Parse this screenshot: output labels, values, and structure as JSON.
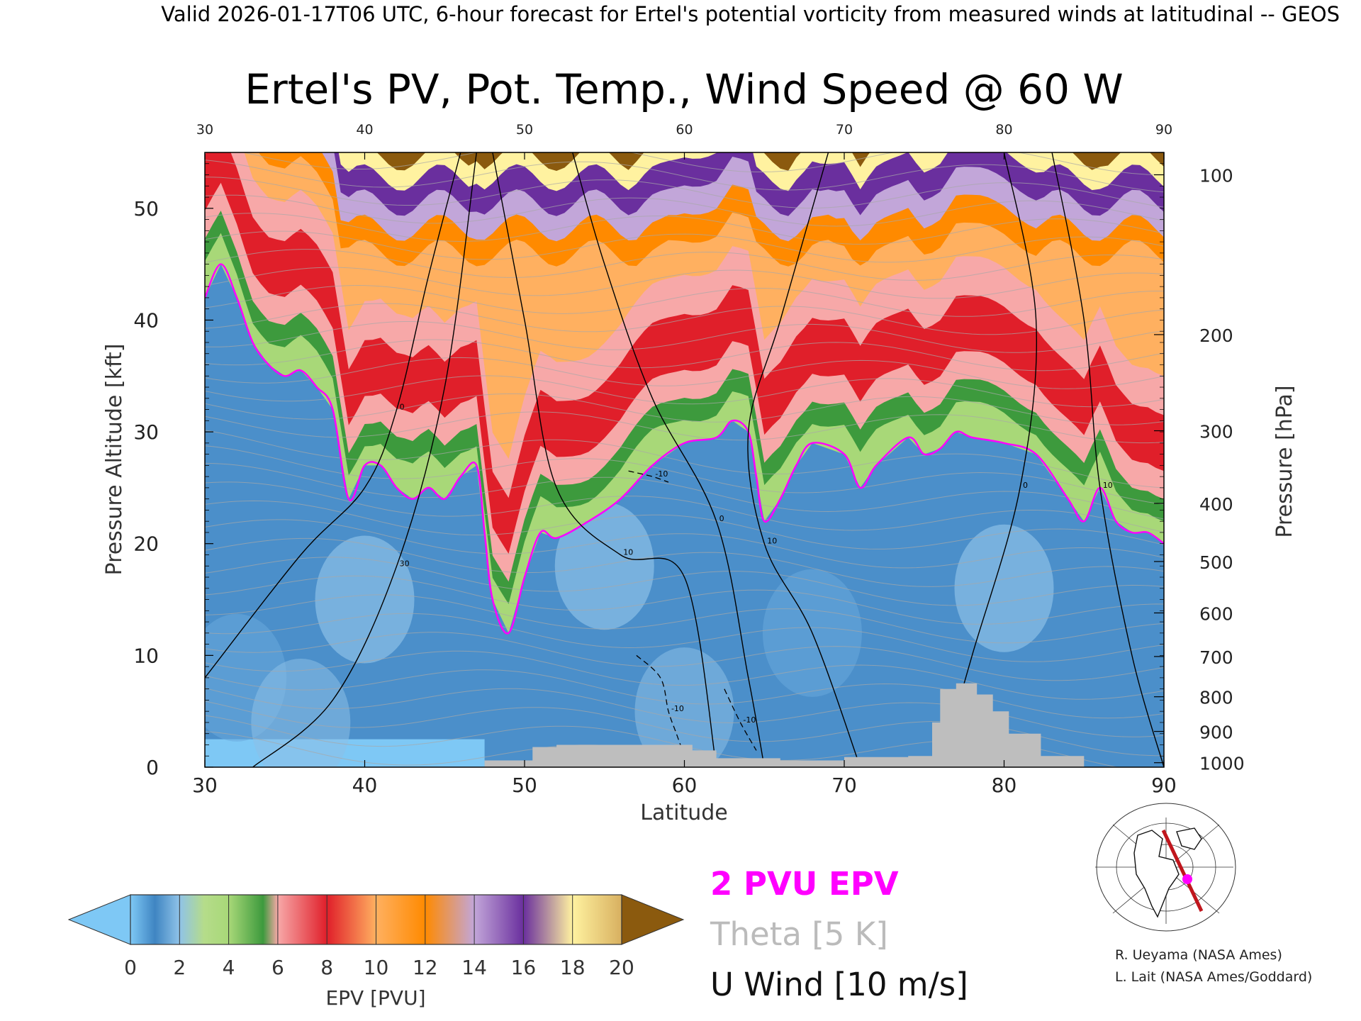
{
  "header": {
    "valid_line": "Valid 2026-01-17T06 UTC, 6-hour forecast for Ertel's potential vorticity from measured winds at latitudinal -- GEOS",
    "title": "Ertel's PV, Pot. Temp., Wind Speed @ 60 W"
  },
  "colors": {
    "pv_2pvu_contour": "#ff00ff",
    "theta_contour": "#a8a8a8",
    "u_wind_contour": "#000000",
    "terrain": "#bebebe",
    "colorbar": [
      "#7ec8f5",
      "#3f85c2",
      "#8fc3e8",
      "#a8d878",
      "#3d9a3d",
      "#f7a8a8",
      "#e01f2a",
      "#ffb060",
      "#ff8a00",
      "#c2a6d9",
      "#6a2f9e",
      "#fff2a0",
      "#8b5a0e"
    ]
  },
  "chart_data": {
    "type": "heatmap",
    "title": "Ertel's PV, Pot. Temp., Wind Speed @ 60 W",
    "xlabel": "Latitude",
    "ylabel": "Pressure Altitude [kft]",
    "y2label": "Pressure [hPa]",
    "xlim": [
      30,
      90
    ],
    "ylim": [
      0,
      55
    ],
    "x_ticks": [
      "30",
      "40",
      "50",
      "60",
      "70",
      "80",
      "90"
    ],
    "y_ticks": [
      "0",
      "10",
      "20",
      "30",
      "40",
      "50"
    ],
    "pressure_ticks": [
      {
        "label": "100",
        "kft": 53.0
      },
      {
        "label": "200",
        "kft": 38.7
      },
      {
        "label": "300",
        "kft": 30.1
      },
      {
        "label": "400",
        "kft": 23.6
      },
      {
        "label": "500",
        "kft": 18.4
      },
      {
        "label": "600",
        "kft": 13.8
      },
      {
        "label": "700",
        "kft": 9.9
      },
      {
        "label": "800",
        "kft": 6.3
      },
      {
        "label": "900",
        "kft": 3.2
      },
      {
        "label": "1000",
        "kft": 0.4
      }
    ],
    "colorbar": {
      "label": "EPV [PVU]",
      "ticks": [
        "0",
        "2",
        "4",
        "6",
        "8",
        "10",
        "12",
        "14",
        "16",
        "18",
        "20"
      ],
      "range": [
        0,
        20
      ]
    },
    "pv_2pvu_tropopause_kft": [
      [
        30,
        42
      ],
      [
        31,
        45
      ],
      [
        32,
        42
      ],
      [
        33,
        38
      ],
      [
        34,
        36
      ],
      [
        35,
        35
      ],
      [
        36,
        35.5
      ],
      [
        37,
        34
      ],
      [
        38,
        32
      ],
      [
        39,
        24
      ],
      [
        40,
        27
      ],
      [
        41,
        27
      ],
      [
        42,
        25
      ],
      [
        43,
        24
      ],
      [
        44,
        25
      ],
      [
        45,
        24
      ],
      [
        46,
        26
      ],
      [
        47,
        27
      ],
      [
        47.5,
        21
      ],
      [
        48,
        15
      ],
      [
        49,
        12
      ],
      [
        50,
        17
      ],
      [
        51,
        21
      ],
      [
        52,
        20.5
      ],
      [
        54,
        22
      ],
      [
        56,
        24
      ],
      [
        58,
        27
      ],
      [
        60,
        29
      ],
      [
        62,
        29.5
      ],
      [
        63,
        31
      ],
      [
        64,
        30
      ],
      [
        64.5,
        26
      ],
      [
        65,
        22
      ],
      [
        66,
        24
      ],
      [
        67,
        27
      ],
      [
        68,
        29
      ],
      [
        70,
        28
      ],
      [
        71,
        25
      ],
      [
        72,
        27
      ],
      [
        74,
        29.5
      ],
      [
        75,
        28
      ],
      [
        76,
        28.5
      ],
      [
        77,
        30
      ],
      [
        78,
        29.5
      ],
      [
        80,
        29
      ],
      [
        82,
        28
      ],
      [
        84,
        24
      ],
      [
        85,
        22
      ],
      [
        86,
        25
      ],
      [
        87,
        22
      ],
      [
        88,
        21
      ],
      [
        89,
        21
      ],
      [
        90,
        20
      ]
    ],
    "terrain_kft": [
      [
        30,
        0
      ],
      [
        47.5,
        0
      ],
      [
        47.5,
        0.6
      ],
      [
        50.5,
        0.6
      ],
      [
        50.5,
        1.8
      ],
      [
        52,
        1.8
      ],
      [
        52,
        2.0
      ],
      [
        60.5,
        2.0
      ],
      [
        60.5,
        1.5
      ],
      [
        62,
        1.5
      ],
      [
        62,
        0.8
      ],
      [
        66,
        0.8
      ],
      [
        66,
        0.6
      ],
      [
        70,
        0.6
      ],
      [
        70,
        0.9
      ],
      [
        72,
        0.9
      ],
      [
        74,
        0.9
      ],
      [
        74,
        1.0
      ],
      [
        75.5,
        1.0
      ],
      [
        75.5,
        4.0
      ],
      [
        76,
        4.0
      ],
      [
        76,
        7.0
      ],
      [
        77,
        7.0
      ],
      [
        77,
        7.5
      ],
      [
        78.3,
        7.5
      ],
      [
        78.3,
        6.5
      ],
      [
        79.3,
        6.5
      ],
      [
        79.3,
        5.0
      ],
      [
        80.3,
        5.0
      ],
      [
        80.3,
        3.0
      ],
      [
        82.3,
        3.0
      ],
      [
        82.3,
        1.0
      ],
      [
        85,
        1.0
      ],
      [
        85,
        0
      ],
      [
        90,
        0
      ]
    ],
    "u_wind_contours": [
      {
        "label": "0",
        "points": [
          [
            30,
            8
          ],
          [
            36,
            19
          ],
          [
            40,
            25
          ],
          [
            42,
            32
          ],
          [
            44,
            44
          ],
          [
            46,
            55
          ]
        ]
      },
      {
        "label": "30",
        "points": [
          [
            33,
            0
          ],
          [
            38,
            6
          ],
          [
            42,
            18
          ],
          [
            45,
            34
          ],
          [
            47,
            55
          ]
        ]
      },
      {
        "label": "10",
        "points": [
          [
            48,
            55
          ],
          [
            50,
            40
          ],
          [
            52,
            25
          ],
          [
            56,
            19
          ],
          [
            60,
            17
          ],
          [
            62,
            0
          ]
        ]
      },
      {
        "label": "0",
        "points": [
          [
            53,
            55
          ],
          [
            55,
            45
          ],
          [
            58,
            33
          ],
          [
            62,
            22
          ],
          [
            64,
            8
          ],
          [
            65,
            0
          ]
        ]
      },
      {
        "label": "10",
        "points": [
          [
            69,
            55
          ],
          [
            66,
            40
          ],
          [
            64,
            30
          ],
          [
            65,
            20
          ],
          [
            68,
            12
          ],
          [
            71,
            0
          ]
        ]
      },
      {
        "label": "0",
        "points": [
          [
            80,
            55
          ],
          [
            82,
            40
          ],
          [
            81,
            25
          ],
          [
            78,
            10
          ],
          [
            76,
            0
          ]
        ]
      },
      {
        "label": "10",
        "points": [
          [
            83,
            55
          ],
          [
            85,
            40
          ],
          [
            86,
            25
          ],
          [
            88,
            10
          ],
          [
            90,
            0
          ]
        ]
      }
    ],
    "u_wind_negative_contours": [
      {
        "label": "-10",
        "points": [
          [
            57,
            10
          ],
          [
            58.5,
            8
          ],
          [
            59,
            5
          ],
          [
            59.5,
            3
          ],
          [
            60,
            1
          ]
        ]
      },
      {
        "label": "-10",
        "points": [
          [
            62.5,
            7
          ],
          [
            63.5,
            4
          ],
          [
            64.5,
            1.5
          ]
        ]
      },
      {
        "label": "-10",
        "points": [
          [
            56.5,
            26.5
          ],
          [
            58,
            26
          ],
          [
            59,
            25.5
          ]
        ]
      }
    ],
    "legend": [
      "2 PVU EPV",
      "Theta [5 K]",
      "U Wind [10 m/s]"
    ]
  },
  "credits": [
    "R. Ueyama (NASA Ames)",
    "L. Lait (NASA Ames/Goddard)"
  ]
}
